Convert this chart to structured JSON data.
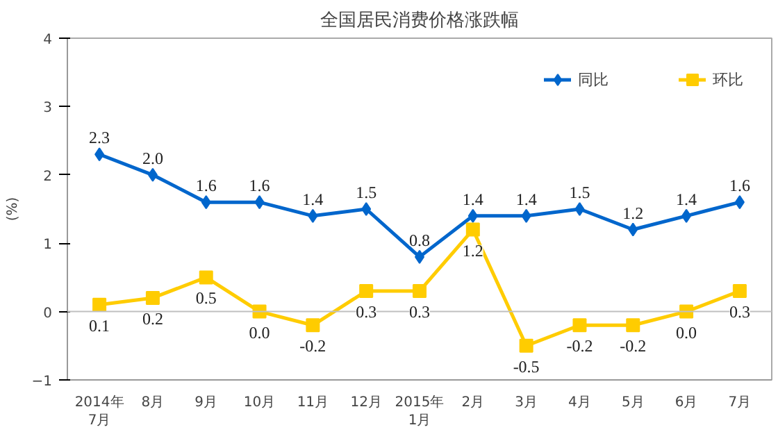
{
  "chart_data": {
    "type": "line",
    "title": "全国居民消费价格涨跌幅",
    "ylabel": "(%)",
    "categories": [
      "2014年\n7月",
      "8月",
      "9月",
      "10月",
      "11月",
      "12月",
      "2015年\n1月",
      "2月",
      "3月",
      "4月",
      "5月",
      "6月",
      "7月"
    ],
    "series": [
      {
        "name": "同比",
        "color": "#0066cc",
        "marker": "diamond",
        "values": [
          2.3,
          2.0,
          1.6,
          1.6,
          1.4,
          1.5,
          0.8,
          1.4,
          1.4,
          1.5,
          1.2,
          1.4,
          1.6
        ],
        "value_labels": [
          "2.3",
          "2.0",
          "1.6",
          "1.6",
          "1.4",
          "1.5",
          "0.8",
          "1.4",
          "1.4",
          "1.5",
          "1.2",
          "1.4",
          "1.6"
        ]
      },
      {
        "name": "环比",
        "color": "#ffcc00",
        "marker": "square",
        "values": [
          0.1,
          0.2,
          0.5,
          0.0,
          -0.2,
          0.3,
          0.3,
          1.2,
          -0.5,
          -0.2,
          -0.2,
          0.0,
          0.3
        ],
        "value_labels": [
          "0.1",
          "0.2",
          "0.5",
          "0.0",
          "-0.2",
          "0.3",
          "0.3",
          "1.2",
          "-0.5",
          "-0.2",
          "-0.2",
          "0.0",
          "0.3"
        ]
      }
    ],
    "ylim": [
      -1,
      4
    ],
    "yticks": [
      -1,
      0,
      1,
      2,
      3,
      4
    ],
    "ref_lines": [
      {
        "axis": "y",
        "value": 0,
        "color": "#c0c0c0"
      }
    ],
    "legend": "top right",
    "grid": false
  }
}
